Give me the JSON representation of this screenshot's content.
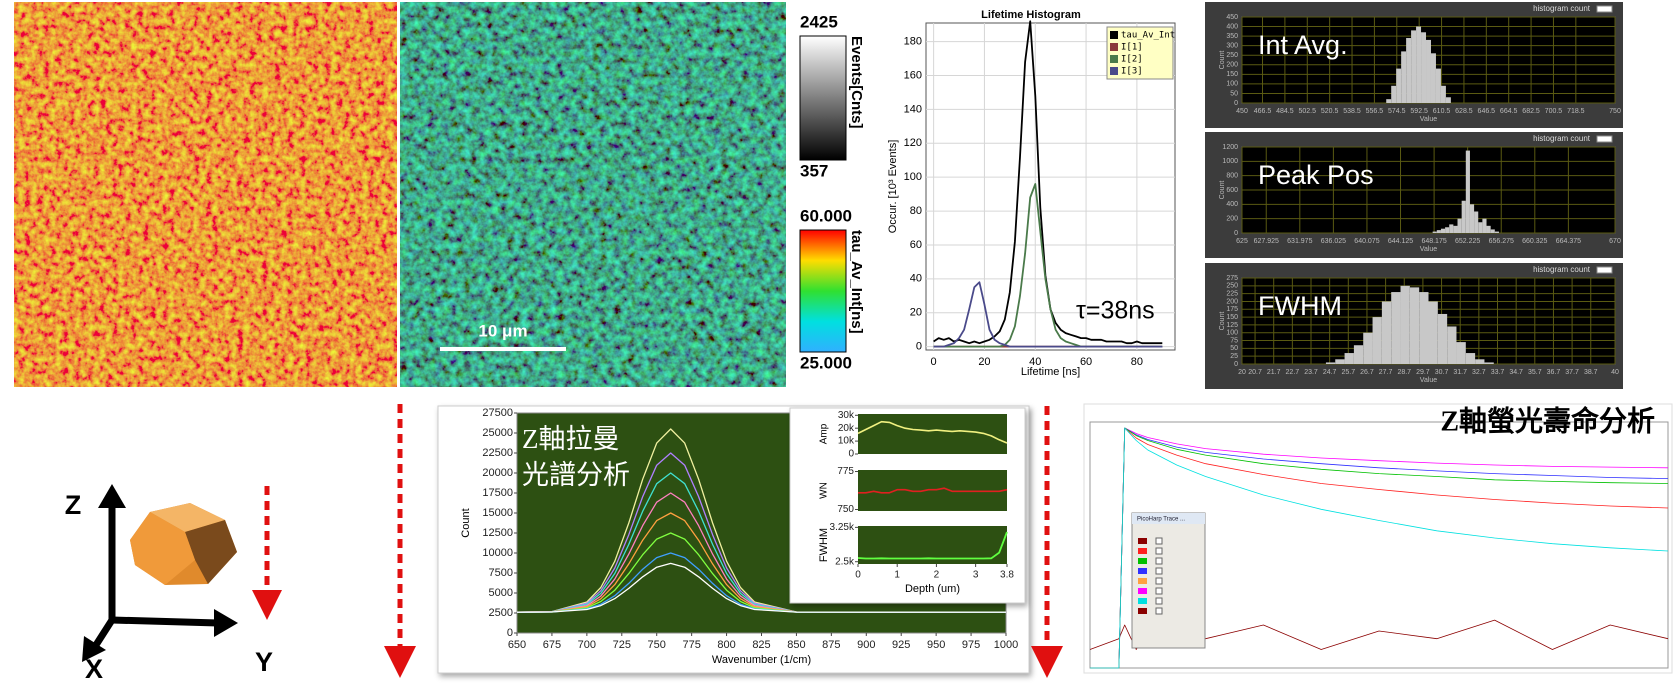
{
  "chart_data": [
    {
      "type": "line",
      "title": "Lifetime Histogram",
      "x": [
        0,
        2,
        4,
        6,
        8,
        10,
        12,
        14,
        16,
        18,
        20,
        22,
        24,
        26,
        28,
        30,
        32,
        34,
        36,
        38,
        40,
        42,
        44,
        46,
        48,
        50,
        52,
        54,
        56,
        58,
        60,
        62,
        64,
        66,
        68,
        70,
        72,
        74,
        76,
        78,
        80,
        82,
        84,
        86,
        88,
        90
      ],
      "series": [
        {
          "name": "tau_Av_Int",
          "color": "#000000",
          "values": [
            3,
            5,
            4,
            5,
            3,
            4,
            3,
            2,
            3,
            2,
            3,
            4,
            6,
            9,
            16,
            32,
            62,
            112,
            168,
            192,
            148,
            82,
            42,
            22,
            14,
            10,
            8,
            7,
            6,
            5,
            5,
            4,
            4,
            4,
            3,
            3,
            3,
            3,
            2,
            2,
            3,
            2,
            2,
            2,
            2,
            2
          ]
        },
        {
          "name": "I[1]",
          "color": "#8b3a3a",
          "values": [
            0,
            0,
            0,
            0,
            0,
            0,
            0,
            0,
            0,
            0,
            0,
            0,
            0,
            0,
            0,
            0,
            0,
            0,
            0,
            0,
            0,
            0,
            0,
            0,
            0,
            0,
            0,
            0,
            0,
            0,
            0,
            0,
            0,
            0,
            0,
            0,
            0,
            0,
            0,
            0,
            0,
            0,
            0,
            0,
            0,
            0
          ]
        },
        {
          "name": "I[2]",
          "color": "#4a7a4a",
          "values": [
            0,
            0,
            0,
            0,
            0,
            0,
            0,
            0,
            0,
            0,
            0,
            0,
            0,
            0,
            1,
            4,
            12,
            30,
            55,
            88,
            96,
            68,
            40,
            22,
            10,
            5,
            3,
            2,
            1,
            0,
            0,
            0,
            0,
            0,
            0,
            0,
            0,
            0,
            0,
            0,
            0,
            0,
            0,
            0,
            0,
            0
          ]
        },
        {
          "name": "I[3]",
          "color": "#4a4a8a",
          "values": [
            0,
            0,
            0,
            1,
            2,
            5,
            10,
            22,
            35,
            38,
            25,
            10,
            4,
            2,
            1,
            0,
            0,
            0,
            0,
            0,
            0,
            0,
            0,
            0,
            0,
            0,
            0,
            0,
            0,
            0,
            0,
            0,
            0,
            0,
            0,
            0,
            0,
            0,
            0,
            0,
            0,
            0,
            0,
            0,
            0,
            0
          ]
        }
      ],
      "xlim": [
        -3,
        95
      ],
      "ylim": [
        -2,
        191
      ],
      "xticks": [
        0,
        20,
        40,
        60,
        80
      ],
      "yticks": [
        0,
        20,
        40,
        60,
        80,
        100,
        120,
        140,
        160,
        180
      ],
      "xlabel": "Lifetime [ns]",
      "ylabel": "Occur. [10³ Events]",
      "annotation": "τ=38ns",
      "grid": true,
      "legend": "upper right"
    },
    {
      "type": "histogram",
      "title": "histogram count",
      "annotation": "Int Avg.",
      "color": "#c8c8c8",
      "bins": [
        566,
        570,
        574,
        578,
        582,
        586,
        590,
        594,
        598,
        602,
        606,
        610,
        614,
        618
      ],
      "values": [
        20,
        90,
        180,
        270,
        340,
        380,
        400,
        370,
        330,
        260,
        180,
        90,
        30
      ],
      "xlim": [
        450,
        750
      ],
      "ylim": [
        0,
        450
      ],
      "xticks": [
        450,
        466.5,
        484.5,
        502.5,
        520.5,
        538.5,
        556.5,
        574.5,
        592.5,
        610.5,
        628.5,
        646.5,
        664.5,
        682.5,
        700.5,
        718.5,
        750
      ],
      "yticks": [
        0,
        50,
        100,
        150,
        200,
        250,
        300,
        350,
        400,
        450
      ],
      "xlabel": "Value",
      "ylabel": "Count",
      "grid": true
    },
    {
      "type": "histogram",
      "title": "histogram count",
      "annotation": "Peak Pos",
      "color": "#c8c8c8",
      "bins": [
        648,
        648.5,
        649,
        649.5,
        650,
        650.5,
        651,
        651.5,
        652,
        652.5,
        653,
        653.5,
        654,
        654.5,
        655,
        655.5,
        656
      ],
      "values": [
        20,
        40,
        60,
        80,
        120,
        100,
        200,
        450,
        1150,
        400,
        300,
        150,
        200,
        100,
        50,
        20
      ],
      "xlim": [
        625,
        670
      ],
      "ylim": [
        0,
        1200
      ],
      "xticks": [
        625,
        627.925,
        631.975,
        636.025,
        640.075,
        644.125,
        648.175,
        652.225,
        656.275,
        660.325,
        664.375,
        670
      ],
      "yticks": [
        0,
        200,
        400,
        600,
        800,
        1000,
        1200
      ],
      "xlabel": "Value",
      "ylabel": "Count",
      "grid": true
    },
    {
      "type": "histogram",
      "title": "histogram count",
      "annotation": "FWHM",
      "color": "#c8c8c8",
      "bins": [
        24.5,
        25,
        25.5,
        26,
        26.5,
        27,
        27.5,
        28,
        28.5,
        29,
        29.5,
        30,
        30.5,
        31,
        31.5,
        32,
        32.5,
        33,
        33.5
      ],
      "values": [
        5,
        15,
        35,
        60,
        100,
        150,
        200,
        230,
        250,
        245,
        230,
        200,
        160,
        120,
        70,
        35,
        15,
        5
      ],
      "xlim": [
        20,
        40
      ],
      "ylim": [
        0,
        275
      ],
      "xticks": [
        20,
        20.7,
        21.7,
        22.7,
        23.7,
        24.7,
        25.7,
        26.7,
        27.7,
        28.7,
        29.7,
        30.7,
        31.7,
        32.7,
        33.7,
        34.7,
        35.7,
        36.7,
        37.7,
        38.7,
        40
      ],
      "yticks": [
        0,
        25,
        50,
        75,
        100,
        125,
        150,
        175,
        200,
        225,
        250,
        275
      ],
      "xlabel": "Value",
      "ylabel": "Count",
      "grid": true
    },
    {
      "type": "line",
      "annotation": [
        "Z軸拉曼",
        "光譜分析"
      ],
      "x": [
        650,
        675,
        700,
        710,
        720,
        730,
        740,
        750,
        760,
        770,
        780,
        790,
        800,
        810,
        820,
        850,
        900,
        950,
        1000
      ],
      "series": [
        {
          "color": "#f0f0a0",
          "values": [
            2600,
            2670,
            3880,
            5690,
            8970,
            13750,
            19230,
            23740,
            25500,
            23740,
            19230,
            13750,
            8970,
            5690,
            3880,
            2630,
            2600,
            2600,
            2600
          ]
        },
        {
          "color": "#b080ff",
          "values": [
            2600,
            2660,
            3710,
            5290,
            8130,
            12290,
            17050,
            20970,
            22500,
            20970,
            17050,
            12290,
            8130,
            5290,
            3710,
            2630,
            2600,
            2600,
            2600
          ]
        },
        {
          "color": "#40e0d0",
          "values": [
            2600,
            2650,
            3570,
            4950,
            7440,
            11070,
            15230,
            18660,
            20000,
            18660,
            15230,
            11070,
            7440,
            4950,
            3570,
            2630,
            2600,
            2600,
            2600
          ]
        },
        {
          "color": "#ff80c0",
          "values": [
            2600,
            2640,
            3430,
            4610,
            6740,
            9860,
            13420,
            16350,
            17500,
            16350,
            13420,
            9860,
            6740,
            4610,
            3430,
            2620,
            2600,
            2600,
            2600
          ]
        },
        {
          "color": "#ffa040",
          "values": [
            2600,
            2640,
            3290,
            4270,
            6050,
            8640,
            11600,
            14050,
            15000,
            14050,
            11600,
            8640,
            6050,
            4270,
            3290,
            2620,
            2600,
            2600,
            2600
          ]
        },
        {
          "color": "#80ff40",
          "values": [
            2600,
            2630,
            3150,
            3940,
            5350,
            7420,
            9790,
            11740,
            12500,
            11740,
            9790,
            7420,
            5350,
            3940,
            3150,
            2610,
            2600,
            2600,
            2600
          ]
        },
        {
          "color": "#40a0ff",
          "values": [
            2600,
            2620,
            3010,
            3600,
            4660,
            6200,
            7970,
            9430,
            10000,
            9430,
            7970,
            6200,
            4660,
            3600,
            3010,
            2610,
            2600,
            2600,
            2600
          ]
        },
        {
          "color": "#ffffff",
          "values": [
            2600,
            2620,
            2940,
            3420,
            4300,
            5570,
            7030,
            8230,
            8700,
            8230,
            7030,
            5570,
            4300,
            3420,
            2940,
            2610,
            2600,
            2600,
            2600
          ]
        }
      ],
      "xlim": [
        650,
        1000
      ],
      "ylim": [
        0,
        27500
      ],
      "xticks": [
        650,
        675,
        700,
        725,
        750,
        775,
        800,
        825,
        850,
        875,
        900,
        925,
        950,
        975,
        1000
      ],
      "yticks": [
        0,
        2500,
        5000,
        7500,
        10000,
        12500,
        15000,
        17500,
        20000,
        22500,
        25000,
        27500
      ],
      "xlabel": "Wavenumber (1/cm)",
      "ylabel": "Count"
    },
    {
      "type": "line",
      "x": [
        0,
        0.2,
        0.4,
        0.6,
        0.8,
        1,
        1.2,
        1.4,
        1.6,
        1.8,
        2,
        2.2,
        2.4,
        2.6,
        2.8,
        3,
        3.2,
        3.4,
        3.6,
        3.8
      ],
      "series": [
        {
          "color": "#f0f080",
          "values": [
            16000,
            19000,
            22000,
            25000,
            24500,
            22000,
            20000,
            19000,
            18500,
            18000,
            18500,
            18000,
            17500,
            18000,
            17500,
            17000,
            16000,
            14000,
            11000,
            8500
          ]
        }
      ],
      "xlim": [
        0,
        3.8
      ],
      "ylim": [
        0,
        31000
      ],
      "yticks": [
        0,
        {
          "value": 10000,
          "label": "10k"
        },
        {
          "value": 20000,
          "label": "20k"
        },
        {
          "value": 30000,
          "label": "30k"
        }
      ],
      "ylabel": "Amp"
    },
    {
      "type": "line",
      "x": [
        0,
        0.2,
        0.4,
        0.6,
        0.8,
        1,
        1.2,
        1.4,
        1.6,
        1.8,
        2,
        2.2,
        2.4,
        2.6,
        2.8,
        3,
        3.2,
        3.4,
        3.6,
        3.8
      ],
      "series": [
        {
          "color": "#e02020",
          "values": [
            761,
            761,
            762,
            761,
            761,
            763,
            763,
            762,
            762,
            763,
            763,
            764,
            762,
            762,
            762,
            762,
            762,
            762,
            762,
            763
          ]
        }
      ],
      "xlim": [
        0,
        3.8
      ],
      "ylim": [
        749,
        776
      ],
      "yticks": [
        750,
        775
      ],
      "ylabel": "WN"
    },
    {
      "type": "line",
      "x": [
        0,
        0.2,
        0.4,
        0.6,
        0.8,
        1,
        1.2,
        1.4,
        1.6,
        1.8,
        2,
        2.2,
        2.4,
        2.6,
        2.8,
        3,
        3.2,
        3.4,
        3.6,
        3.8
      ],
      "series": [
        {
          "color": "#60ff40",
          "values": [
            2580,
            2570,
            2570,
            2575,
            2570,
            2570,
            2570,
            2570,
            2570,
            2575,
            2570,
            2570,
            2570,
            2570,
            2570,
            2570,
            2570,
            2575,
            2700,
            3150
          ]
        }
      ],
      "xlim": [
        0,
        3.8
      ],
      "ylim": [
        2450,
        3280
      ],
      "yticks": [
        {
          "value": 2500,
          "label": "2.5k"
        },
        {
          "value": 3250,
          "label": "3.25k"
        }
      ],
      "xticks": [
        0,
        1,
        2,
        3,
        3.8
      ],
      "ylabel": "FWHM",
      "xlabel": "Depth (um)"
    },
    {
      "type": "line",
      "title": "Z軸螢光壽命分析",
      "log": true,
      "x": [
        0,
        5,
        6,
        8,
        10,
        15,
        20,
        30,
        40,
        50,
        60,
        70,
        80,
        90,
        100
      ],
      "series": [
        {
          "color": "#8b0000",
          "values": [
            2,
            3,
            5,
            2,
            4,
            6,
            3,
            5,
            2,
            4,
            3,
            6,
            2,
            5,
            3
          ]
        },
        {
          "color": "#ff00ff",
          "values": [
            1,
            1,
            8000,
            6500,
            5600,
            4400,
            3700,
            3000,
            2600,
            2350,
            2150,
            2000,
            1900,
            1850,
            1800
          ]
        },
        {
          "color": "#3030ff",
          "values": [
            1,
            1,
            8000,
            6200,
            5200,
            3900,
            3200,
            2500,
            2100,
            1800,
            1600,
            1450,
            1350,
            1250,
            1200
          ]
        },
        {
          "color": "#00c000",
          "values": [
            1,
            1,
            8000,
            6000,
            5000,
            3600,
            2900,
            2100,
            1700,
            1450,
            1300,
            1150,
            1080,
            1030,
            1000
          ]
        },
        {
          "color": "#ff2020",
          "values": [
            1,
            1,
            8000,
            5500,
            4300,
            2900,
            2100,
            1400,
            1000,
            800,
            650,
            550,
            480,
            430,
            400
          ]
        },
        {
          "color": "#00e0e0",
          "values": [
            1,
            1,
            8000,
            5000,
            3500,
            2000,
            1300,
            650,
            380,
            250,
            170,
            130,
            105,
            90,
            80
          ]
        }
      ],
      "xlim": [
        0,
        100
      ],
      "ylim": [
        1,
        10000
      ]
    }
  ],
  "images": {
    "scale_bar": "10 μm",
    "colorbars": [
      {
        "ticks": [
          2425,
          357
        ],
        "label": "Events[Cnts]"
      },
      {
        "ticks": [
          {
            "value": 60,
            "label": "60.000"
          },
          {
            "value": 25,
            "label": "25.000"
          }
        ],
        "label": "tau_Av_Int[ns]"
      }
    ]
  },
  "diagram": {
    "axes": [
      "Z",
      "X",
      "Y"
    ]
  },
  "window": {
    "title": "PicoHarp Trace ..."
  }
}
